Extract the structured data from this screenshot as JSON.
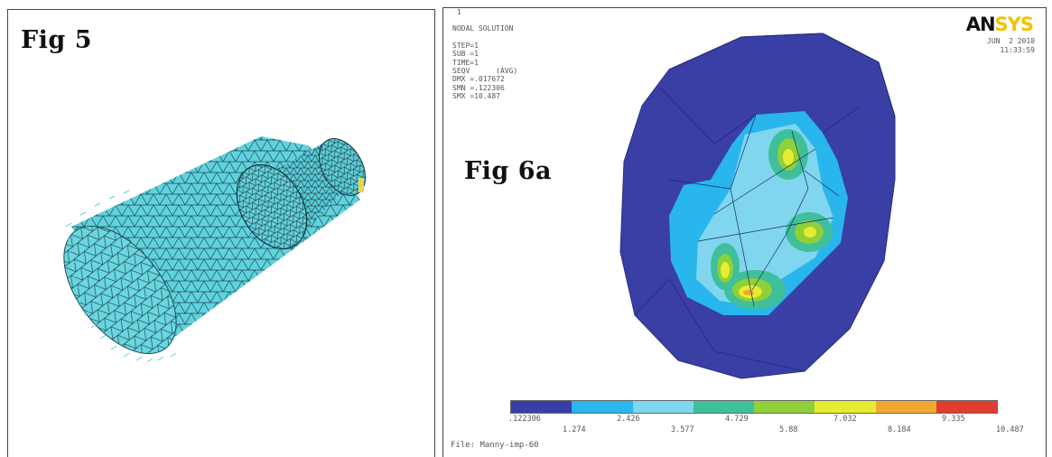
{
  "left_panel": {
    "label": "Fig 5"
  },
  "right_panel": {
    "label": "Fig 6a",
    "info_lines": [
      "NODAL SOLUTION",
      "STEP=1",
      "SUB =1",
      "TIME=1",
      "SEQV      (AVG)",
      "DMX =.017672",
      "SMN =.122306",
      "SMX =10.487"
    ],
    "corner_number": "1",
    "logo_part1": "AN",
    "logo_part2": "SYS",
    "date": "JUN  2 2010",
    "time": "11:33:59",
    "file": "File: Manny-imp-60",
    "legend": {
      "colors": [
        "#3a3fa6",
        "#29b6ec",
        "#7fd6ee",
        "#3fbf9a",
        "#8fd038",
        "#e8ec30",
        "#f2a830",
        "#e23c2e"
      ],
      "upper_ticks": [
        ".122306",
        "2.426",
        "4.729",
        "7.032",
        "9.335"
      ],
      "lower_ticks": [
        "1.274",
        "3.577",
        "5.88",
        "8.184",
        "10.487"
      ]
    }
  }
}
